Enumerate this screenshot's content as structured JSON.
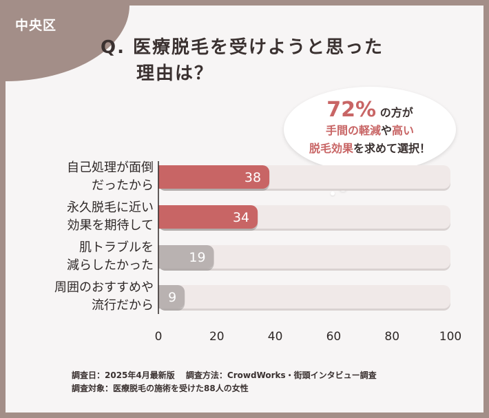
{
  "area_label": "中央区",
  "question": {
    "line1": "Q. 医療脱毛を受けようと思った",
    "line2": "理由は？"
  },
  "callout": {
    "pct": "72%",
    "line1_suffix": "の方が",
    "line2_hl1": "手間の軽減",
    "line2_mid": "や",
    "line2_hl2": "高い",
    "line3_hl": "脱毛効果",
    "line3_rest": "を求めて選択！"
  },
  "chart_data": {
    "type": "bar",
    "orientation": "horizontal",
    "categories": [
      [
        "自己処理が面倒",
        "だったから"
      ],
      [
        "永久脱毛に近い",
        "効果を期待して"
      ],
      [
        "肌トラブルを",
        "減らしたかった"
      ],
      [
        "周囲のおすすめや",
        "流行だから"
      ]
    ],
    "values": [
      38,
      34,
      19,
      9
    ],
    "bar_colors": [
      "#c86565",
      "#c86565",
      "#b9b2b1",
      "#b9b2b1"
    ],
    "track_color": "#f0e9e8",
    "xlim": [
      0,
      100
    ],
    "xticks": [
      "0",
      "20",
      "40",
      "60",
      "80",
      "100"
    ]
  },
  "notes": [
    "調査日：2025年4月最新版　 調査方法：CrowdWorks・街頭インタビュー調査",
    "調査対象：医療脱毛の施術を受けた88人の女性"
  ]
}
